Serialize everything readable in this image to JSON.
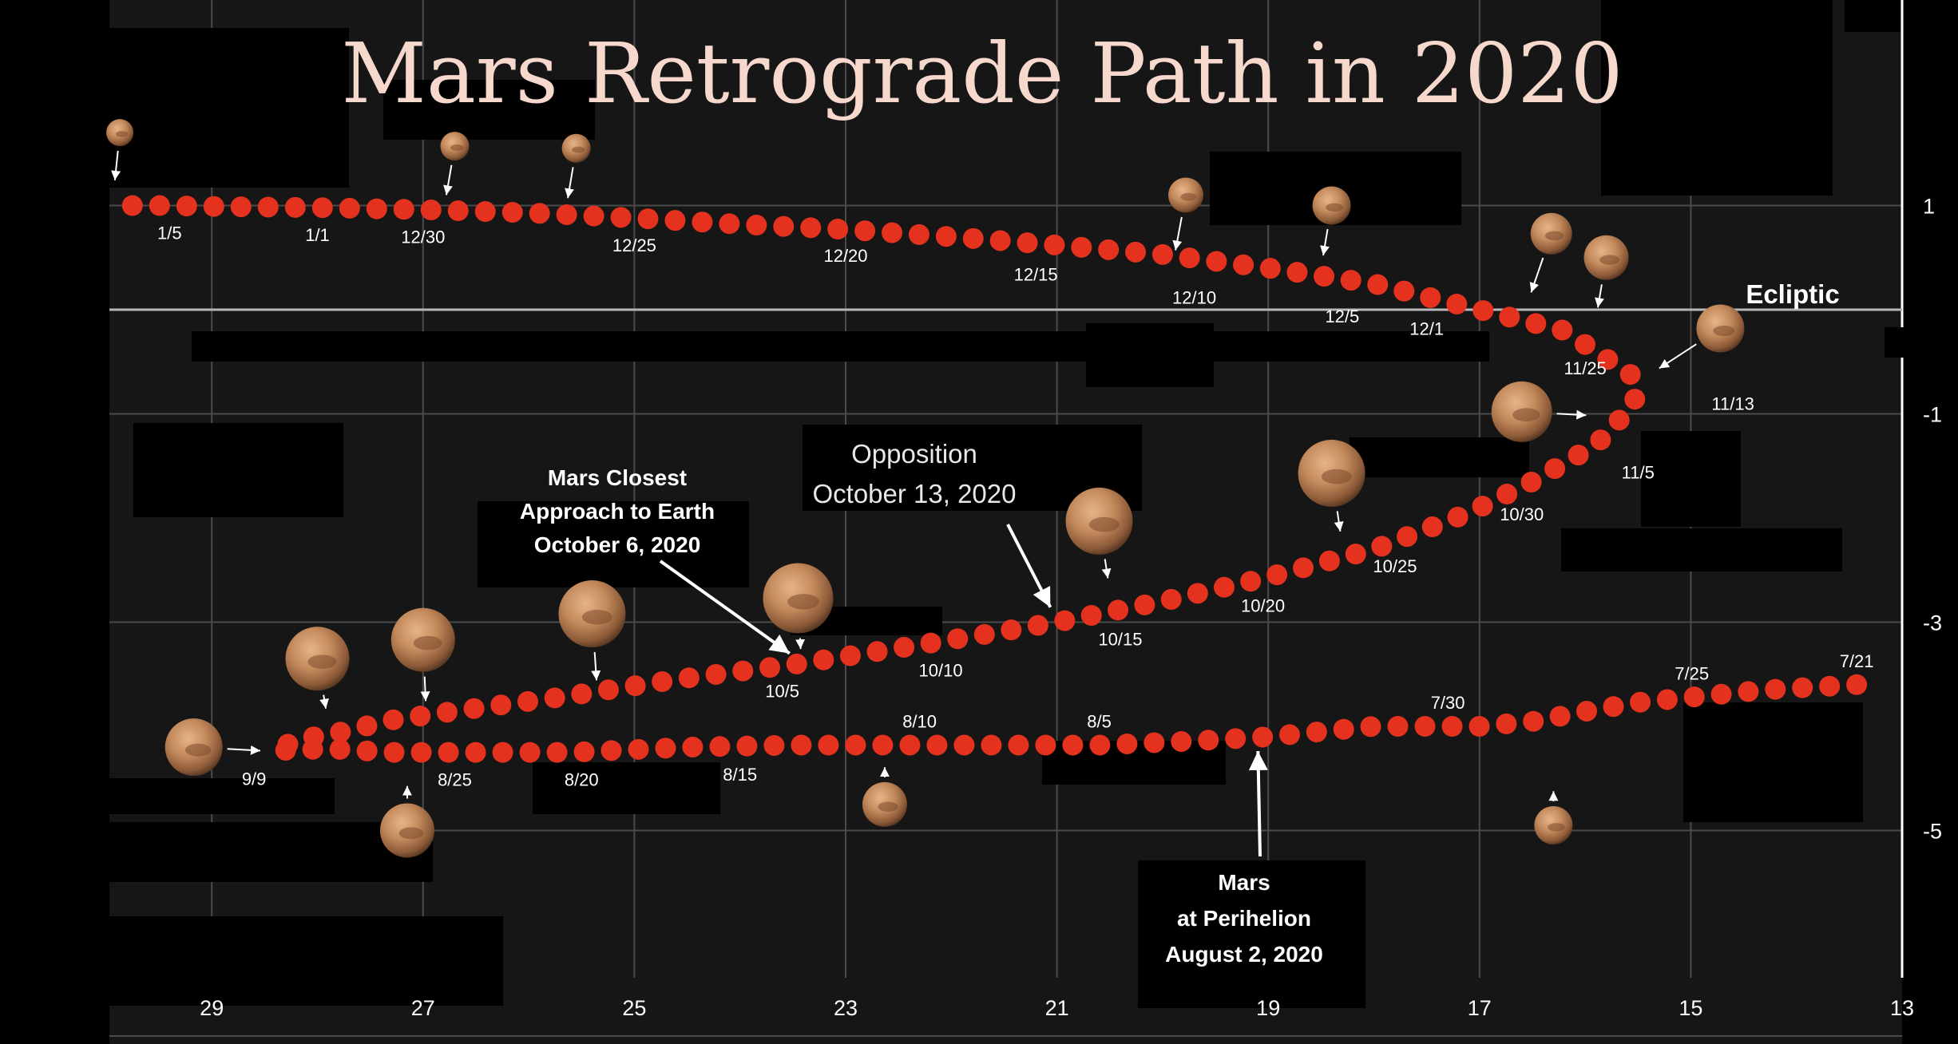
{
  "chart_data": {
    "type": "scatter",
    "title": "Mars Retrograde Path in 2020",
    "xlabel": "",
    "ylabel": "",
    "x_reversed": true,
    "xlim": [
      13,
      30
    ],
    "ylim": [
      -6.1,
      1.9
    ],
    "grid": true,
    "x_ticks": [
      29,
      27,
      25,
      23,
      21,
      19,
      17,
      15,
      13
    ],
    "y_ticks": [
      1,
      -1,
      -3,
      -5
    ],
    "ecliptic": {
      "y": 0,
      "label": "Ecliptic"
    },
    "path": [
      [
        13.43,
        -3.6
      ],
      [
        14.3,
        -3.65
      ],
      [
        14.99,
        -3.72
      ],
      [
        15.5,
        -3.77
      ],
      [
        16.02,
        -3.86
      ],
      [
        16.47,
        -3.95
      ],
      [
        17.0,
        -4.0
      ],
      [
        18.0,
        -4.0
      ],
      [
        19.0,
        -4.1
      ],
      [
        19.7,
        -4.14
      ],
      [
        20.6,
        -4.18
      ],
      [
        21.5,
        -4.18
      ],
      [
        22.5,
        -4.18
      ],
      [
        23.5,
        -4.18
      ],
      [
        24.5,
        -4.2
      ],
      [
        25.6,
        -4.25
      ],
      [
        26.5,
        -4.25
      ],
      [
        27.3,
        -4.25
      ],
      [
        27.8,
        -4.22
      ],
      [
        28.2,
        -4.22
      ],
      [
        28.41,
        -4.24
      ],
      [
        28.2,
        -4.13
      ],
      [
        27.8,
        -4.06
      ],
      [
        27.3,
        -3.94
      ],
      [
        26.6,
        -3.84
      ],
      [
        25.7,
        -3.72
      ],
      [
        24.6,
        -3.55
      ],
      [
        23.45,
        -3.4
      ],
      [
        22.5,
        -3.25
      ],
      [
        21.7,
        -3.12
      ],
      [
        21.0,
        -3.0
      ],
      [
        20.0,
        -2.8
      ],
      [
        19.05,
        -2.58
      ],
      [
        18.0,
        -2.3
      ],
      [
        17.1,
        -1.95
      ],
      [
        16.5,
        -1.65
      ],
      [
        15.9,
        -1.3
      ],
      [
        15.53,
        -0.9
      ],
      [
        15.53,
        -0.65
      ],
      [
        16.2,
        -0.2
      ],
      [
        17.0,
        0.0
      ],
      [
        18.0,
        0.25
      ],
      [
        19.0,
        0.4
      ],
      [
        20.0,
        0.53
      ],
      [
        21.0,
        0.62
      ],
      [
        22.0,
        0.7
      ],
      [
        23.0,
        0.77
      ],
      [
        24.0,
        0.82
      ],
      [
        25.0,
        0.88
      ],
      [
        26.0,
        0.93
      ],
      [
        27.0,
        0.96
      ],
      [
        28.0,
        0.98
      ],
      [
        28.92,
        0.99
      ],
      [
        29.5,
        1.0
      ],
      [
        30.0,
        1.0
      ]
    ],
    "date_labels": [
      {
        "text": "7/21",
        "x": 13.43,
        "y": -3.6,
        "pos": "above"
      },
      {
        "text": "7/25",
        "x": 14.99,
        "y": -3.72,
        "pos": "above"
      },
      {
        "text": "7/30",
        "x": 17.3,
        "y": -4.0,
        "pos": "above"
      },
      {
        "text": "8/5",
        "x": 20.6,
        "y": -4.18,
        "pos": "above"
      },
      {
        "text": "8/10",
        "x": 22.3,
        "y": -4.18,
        "pos": "above"
      },
      {
        "text": "8/15",
        "x": 24.0,
        "y": -4.2,
        "pos": "below"
      },
      {
        "text": "8/20",
        "x": 25.5,
        "y": -4.25,
        "pos": "below"
      },
      {
        "text": "8/25",
        "x": 26.7,
        "y": -4.25,
        "pos": "below"
      },
      {
        "text": "9/9",
        "x": 28.6,
        "y": -4.24,
        "pos": "below"
      },
      {
        "text": "10/5",
        "x": 23.6,
        "y": -3.4,
        "pos": "below"
      },
      {
        "text": "10/10",
        "x": 22.1,
        "y": -3.2,
        "pos": "below"
      },
      {
        "text": "10/15",
        "x": 20.4,
        "y": -2.9,
        "pos": "below"
      },
      {
        "text": "10/20",
        "x": 19.05,
        "y": -2.58,
        "pos": "below"
      },
      {
        "text": "10/25",
        "x": 17.8,
        "y": -2.2,
        "pos": "below"
      },
      {
        "text": "10/30",
        "x": 16.6,
        "y": -1.7,
        "pos": "below"
      },
      {
        "text": "11/5",
        "x": 15.5,
        "y": -1.3,
        "pos": "below"
      },
      {
        "text": "11/13",
        "x": 15.0,
        "y": -0.9,
        "pos": "right"
      },
      {
        "text": "11/25",
        "x": 16.0,
        "y": -0.3,
        "pos": "below"
      },
      {
        "text": "12/1",
        "x": 17.5,
        "y": 0.08,
        "pos": "below"
      },
      {
        "text": "12/5",
        "x": 18.3,
        "y": 0.2,
        "pos": "below"
      },
      {
        "text": "12/10",
        "x": 19.7,
        "y": 0.38,
        "pos": "below"
      },
      {
        "text": "12/15",
        "x": 21.2,
        "y": 0.6,
        "pos": "below"
      },
      {
        "text": "12/20",
        "x": 23.0,
        "y": 0.78,
        "pos": "below"
      },
      {
        "text": "12/25",
        "x": 25.0,
        "y": 0.88,
        "pos": "below"
      },
      {
        "text": "12/30",
        "x": 27.0,
        "y": 0.96,
        "pos": "below"
      },
      {
        "text": "1/1",
        "x": 28.0,
        "y": 0.98,
        "pos": "below"
      },
      {
        "text": "1/5",
        "x": 29.4,
        "y": 1.0,
        "pos": "below"
      }
    ],
    "annotations": [
      {
        "lines": [
          "Mars Closest",
          "Approach to Earth",
          "October 6, 2020"
        ],
        "target": [
          23.42,
          -3.38
        ]
      },
      {
        "lines": [
          "Opposition",
          "October 13, 2020"
        ],
        "target": [
          21.0,
          -2.98
        ]
      },
      {
        "lines": [
          "Mars",
          "at Perihelion",
          "August 2, 2020"
        ],
        "target": [
          19.1,
          -4.1
        ]
      }
    ],
    "mars_images": [
      {
        "x": 29.17,
        "y": -4.2,
        "r": 36,
        "target": [
          28.42,
          -4.24
        ]
      },
      {
        "x": 28.0,
        "y": -3.35,
        "r": 40,
        "target": [
          27.9,
          -3.95
        ]
      },
      {
        "x": 27.0,
        "y": -3.17,
        "r": 40,
        "target": [
          26.97,
          -3.88
        ]
      },
      {
        "x": 27.15,
        "y": -5.0,
        "r": 34,
        "target": [
          27.15,
          -4.45
        ]
      },
      {
        "x": 25.4,
        "y": -2.92,
        "r": 42,
        "target": [
          25.35,
          -3.68
        ]
      },
      {
        "x": 23.45,
        "y": -2.77,
        "r": 44,
        "target": [
          23.42,
          -3.38
        ]
      },
      {
        "x": 22.63,
        "y": -4.75,
        "r": 28,
        "target": [
          22.63,
          -4.27
        ]
      },
      {
        "x": 20.6,
        "y": -2.03,
        "r": 42,
        "target": [
          20.5,
          -2.7
        ]
      },
      {
        "x": 18.4,
        "y": -1.57,
        "r": 42,
        "target": [
          18.3,
          -2.25
        ]
      },
      {
        "x": 16.6,
        "y": -0.98,
        "r": 38,
        "target": [
          15.87,
          -1.02
        ]
      },
      {
        "x": 14.72,
        "y": -0.18,
        "r": 30,
        "target": [
          15.4,
          -0.63
        ]
      },
      {
        "x": 15.8,
        "y": 0.5,
        "r": 28,
        "target": [
          15.9,
          -0.1
        ]
      },
      {
        "x": 16.32,
        "y": 0.73,
        "r": 26,
        "target": [
          16.55,
          0.05
        ]
      },
      {
        "x": 18.4,
        "y": 1.0,
        "r": 24,
        "target": [
          18.5,
          0.4
        ]
      },
      {
        "x": 19.78,
        "y": 1.1,
        "r": 22,
        "target": [
          19.9,
          0.45
        ]
      },
      {
        "x": 26.7,
        "y": 1.57,
        "r": 18,
        "target": [
          26.8,
          0.98
        ]
      },
      {
        "x": 25.55,
        "y": 1.55,
        "r": 18,
        "target": [
          25.65,
          0.95
        ]
      },
      {
        "x": 29.87,
        "y": 1.7,
        "r": 17,
        "target": [
          29.93,
          1.12
        ]
      },
      {
        "x": 16.3,
        "y": -4.95,
        "r": 24,
        "target": [
          16.3,
          -4.5
        ]
      }
    ]
  },
  "colors": {
    "background": "#000000",
    "plot_background": "#161616",
    "grid": "#4a4a4a",
    "ecliptic": "#b8b8b8",
    "path": "#e5321e",
    "title": "#f6d8cc",
    "text": "#ffffff"
  }
}
